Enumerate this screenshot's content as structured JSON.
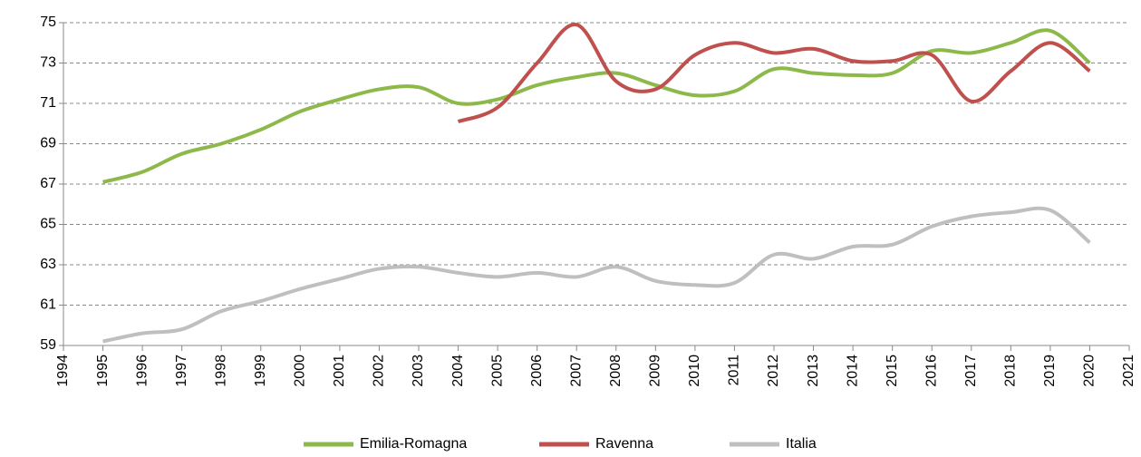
{
  "chart_data": {
    "type": "line",
    "x": [
      1995,
      1996,
      1997,
      1998,
      1999,
      2000,
      2001,
      2002,
      2003,
      2004,
      2005,
      2006,
      2007,
      2008,
      2009,
      2010,
      2011,
      2012,
      2013,
      2014,
      2015,
      2016,
      2017,
      2018,
      2019,
      2020
    ],
    "series": [
      {
        "name": "Emilia-Romagna",
        "color": "#8db84a",
        "values": [
          67.1,
          67.6,
          68.5,
          69.0,
          69.7,
          70.6,
          71.2,
          71.7,
          71.8,
          71.0,
          71.2,
          71.9,
          72.3,
          72.5,
          71.9,
          71.4,
          71.6,
          72.7,
          72.5,
          72.4,
          72.5,
          73.6,
          73.5,
          74.0,
          74.6,
          73.0
        ]
      },
      {
        "name": "Ravenna",
        "color": "#c0504d",
        "values": [
          null,
          null,
          null,
          null,
          null,
          null,
          null,
          null,
          null,
          70.1,
          70.8,
          73.0,
          74.9,
          72.1,
          71.7,
          73.4,
          74.0,
          73.5,
          73.7,
          73.1,
          73.1,
          73.4,
          71.1,
          72.6,
          74.0,
          72.6
        ]
      },
      {
        "name": "Italia",
        "color": "#bfbfbf",
        "values": [
          59.2,
          59.6,
          59.8,
          60.7,
          61.2,
          61.8,
          62.3,
          62.8,
          62.9,
          62.6,
          62.4,
          62.6,
          62.4,
          62.9,
          62.2,
          62.0,
          62.1,
          63.5,
          63.3,
          63.9,
          64.0,
          64.9,
          65.4,
          65.6,
          65.7,
          64.1
        ]
      }
    ],
    "xlim": [
      1994,
      2021
    ],
    "xticks": [
      1994,
      1995,
      1996,
      1997,
      1998,
      1999,
      2000,
      2001,
      2002,
      2003,
      2004,
      2005,
      2006,
      2007,
      2008,
      2009,
      2010,
      2011,
      2012,
      2013,
      2014,
      2015,
      2016,
      2017,
      2018,
      2019,
      2020,
      2021
    ],
    "ylim": [
      59,
      75
    ],
    "yticks": [
      59,
      61,
      63,
      65,
      67,
      69,
      71,
      73,
      75
    ],
    "grid": true,
    "legend": "bottom"
  }
}
